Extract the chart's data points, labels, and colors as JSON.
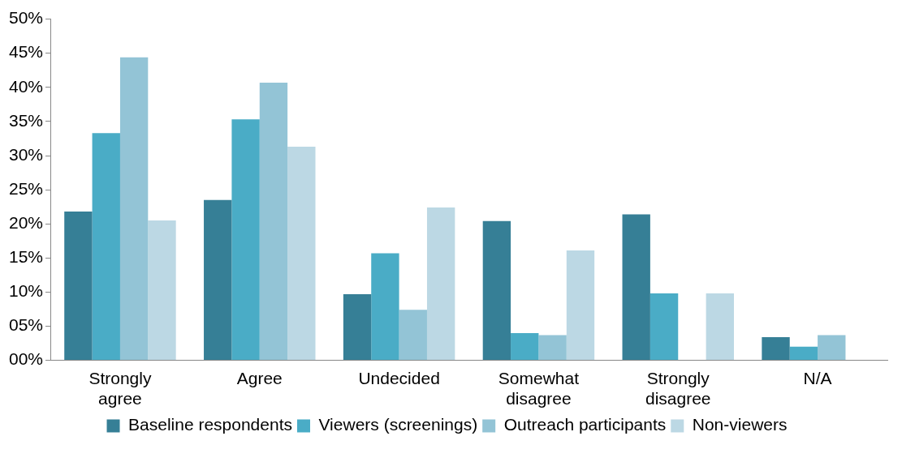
{
  "chart_data": {
    "type": "bar",
    "categories": [
      "Strongly agree",
      "Agree",
      "Undecided",
      "Somewhat disagree",
      "Strongly disagree",
      "N/A"
    ],
    "series": [
      {
        "name": "Baseline respondents",
        "color": "#367f96",
        "values": [
          21.8,
          23.5,
          9.7,
          20.4,
          21.4,
          3.4
        ]
      },
      {
        "name": "Viewers (screenings)",
        "color": "#4aacc6",
        "values": [
          33.3,
          35.3,
          15.7,
          4.0,
          9.8,
          2.0
        ]
      },
      {
        "name": "Outreach participants",
        "color": "#93c4d6",
        "values": [
          44.4,
          40.7,
          7.4,
          3.7,
          null,
          3.7
        ]
      },
      {
        "name": "Non-viewers",
        "color": "#bcd8e4",
        "values": [
          20.5,
          31.3,
          22.4,
          16.1,
          9.8,
          null
        ]
      }
    ],
    "ylim": [
      0,
      50
    ],
    "yticks": [
      {
        "value": 0,
        "label": "00%"
      },
      {
        "value": 5,
        "label": "05%"
      },
      {
        "value": 10,
        "label": "10%"
      },
      {
        "value": 15,
        "label": "15%"
      },
      {
        "value": 20,
        "label": "20%"
      },
      {
        "value": 25,
        "label": "25%"
      },
      {
        "value": 30,
        "label": "30%"
      },
      {
        "value": 35,
        "label": "35%"
      },
      {
        "value": 40,
        "label": "40%"
      },
      {
        "value": 45,
        "label": "45%"
      },
      {
        "value": 50,
        "label": "50%"
      }
    ],
    "grid": false,
    "legend": "bottom"
  }
}
